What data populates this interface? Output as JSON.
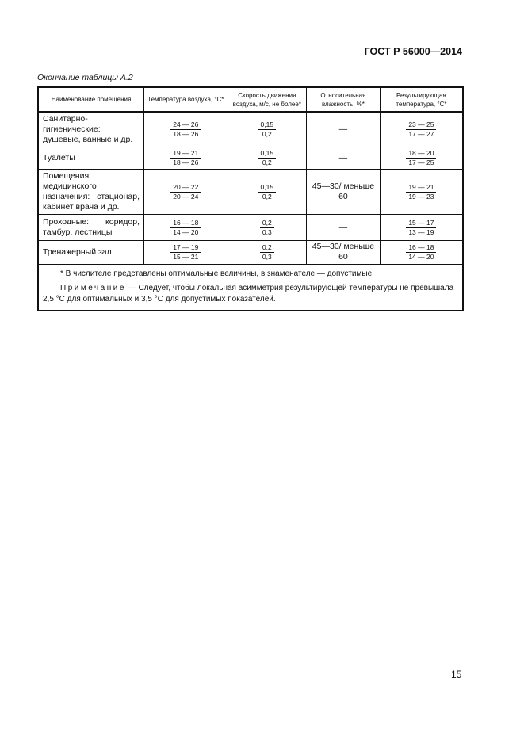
{
  "header": {
    "standard": "ГОСТ Р 56000—2014"
  },
  "caption": "Окончание таблицы А.2",
  "table": {
    "columns": [
      "Наименование помещения",
      "Температура воздуха, °С*",
      "Скорость движения воздуха, м/с, не более*",
      "Относительная влажность, %*",
      "Результирующая температура, °С*"
    ],
    "rows": [
      {
        "name": "Санитарно-гигиенические: душевые, ванные и др.",
        "temp": {
          "num": "24 — 26",
          "den": "18 — 26"
        },
        "speed": {
          "num": "0,15",
          "den": "0,2"
        },
        "humidity": "—",
        "result": {
          "num": "23 — 25",
          "den": "17 — 27"
        }
      },
      {
        "name": "Туалеты",
        "temp": {
          "num": "19 — 21",
          "den": "18 — 26"
        },
        "speed": {
          "num": "0,15",
          "den": "0,2"
        },
        "humidity": "—",
        "result": {
          "num": "18 — 20",
          "den": "17 — 25"
        }
      },
      {
        "name": "Помещения медицинского назначения: стационар, кабинет врача и др.",
        "temp": {
          "num": "20 — 22",
          "den": "20 — 24"
        },
        "speed": {
          "num": "0,15",
          "den": "0,2"
        },
        "humidity": "45—30/ меньше 60",
        "result": {
          "num": "19 — 21",
          "den": "19 — 23"
        }
      },
      {
        "name": "Проходные: коридор, тамбур, лестницы",
        "temp": {
          "num": "16 — 18",
          "den": "14 — 20"
        },
        "speed": {
          "num": "0,2",
          "den": "0,3"
        },
        "humidity": "—",
        "result": {
          "num": "15 — 17",
          "den": "13 — 19"
        }
      },
      {
        "name": "Тренажерный зал",
        "temp": {
          "num": "17 — 19",
          "den": "15 — 21"
        },
        "speed": {
          "num": "0,2",
          "den": "0,3"
        },
        "humidity": "45—30/ меньше 60",
        "result": {
          "num": "16 — 18",
          "den": "14 — 20"
        }
      }
    ],
    "footnote": "* В числителе представлены оптимальные величины, в знаменателе — допустимые.",
    "note_label": "Примечание",
    "note_text": " — Следует, чтобы локальная асимметрия результирующей температуры не превышала 2,5 °С для оптимальных и 3,5 °С для допустимых показателей."
  },
  "page_number": "15"
}
